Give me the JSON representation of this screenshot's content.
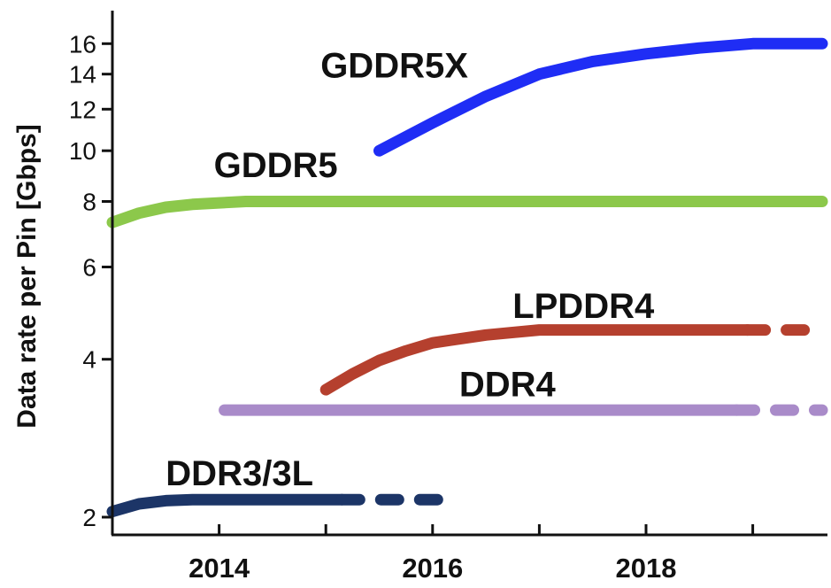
{
  "chart_data": {
    "type": "line",
    "title": "",
    "xlabel": "",
    "ylabel": "Data rate per Pin [Gbps]",
    "y_scale": "log",
    "xlim": [
      2013,
      2019.7
    ],
    "ylim": [
      1.85,
      18.5
    ],
    "x_ticks": [
      {
        "value": 2014,
        "label": "2014"
      },
      {
        "value": 2016,
        "label": "2016"
      },
      {
        "value": 2018,
        "label": "2018"
      }
    ],
    "x_minor_ticks": [
      2015,
      2017,
      2019
    ],
    "y_ticks": [
      {
        "value": 2,
        "label": "2"
      },
      {
        "value": 4,
        "label": "4"
      },
      {
        "value": 6,
        "label": "6"
      },
      {
        "value": 8,
        "label": "8"
      },
      {
        "value": 10,
        "label": "10"
      },
      {
        "value": 12,
        "label": "12"
      },
      {
        "value": 14,
        "label": "14"
      },
      {
        "value": 16,
        "label": "16"
      }
    ],
    "grid": false,
    "series": [
      {
        "name": "GDDR5X",
        "color": "#1f2df5",
        "segments": [
          {
            "style": "solid",
            "x": [
              2015.5,
              2016.0,
              2016.5,
              2017.0,
              2017.5,
              2018.0,
              2018.5,
              2019.0,
              2019.65
            ],
            "y": [
              10.0,
              11.3,
              12.7,
              14.0,
              14.8,
              15.3,
              15.7,
              16.0,
              16.0
            ]
          }
        ]
      },
      {
        "name": "GDDR5",
        "color": "#8cc84b",
        "segments": [
          {
            "style": "solid",
            "x": [
              2013.0,
              2013.25,
              2013.5,
              2013.75,
              2014.0,
              2014.25,
              2014.5,
              2015.0,
              2016.0,
              2017.0,
              2018.0,
              2019.0,
              2019.65
            ],
            "y": [
              7.3,
              7.6,
              7.8,
              7.9,
              7.95,
              8.0,
              8.0,
              8.0,
              8.0,
              8.0,
              8.0,
              8.0,
              8.0
            ]
          }
        ]
      },
      {
        "name": "LPDDR4",
        "color": "#b5402e",
        "segments": [
          {
            "style": "solid",
            "x": [
              2015.0,
              2015.25,
              2015.5,
              2015.75,
              2016.0,
              2016.5,
              2017.0,
              2017.5,
              2018.0,
              2018.5,
              2018.95
            ],
            "y": [
              3.5,
              3.75,
              3.98,
              4.15,
              4.3,
              4.45,
              4.55,
              4.55,
              4.55,
              4.55,
              4.55
            ]
          },
          {
            "style": "dashed",
            "x": [
              2018.95,
              2019.65
            ],
            "y": [
              4.55,
              4.55
            ]
          }
        ]
      },
      {
        "name": "DDR4",
        "color": "#a98bc9",
        "segments": [
          {
            "style": "solid",
            "x": [
              2014.05,
              2016.0,
              2018.0,
              2018.85
            ],
            "y": [
              3.2,
              3.2,
              3.2,
              3.2
            ]
          },
          {
            "style": "dashed",
            "x": [
              2018.85,
              2019.65
            ],
            "y": [
              3.2,
              3.2
            ]
          }
        ]
      },
      {
        "name": "DDR3/3L",
        "color": "#1c3567",
        "segments": [
          {
            "style": "solid",
            "x": [
              2013.0,
              2013.25,
              2013.5,
              2013.75,
              2014.0,
              2014.5,
              2015.0,
              2015.15
            ],
            "y": [
              2.05,
              2.12,
              2.15,
              2.16,
              2.16,
              2.16,
              2.16,
              2.16
            ]
          },
          {
            "style": "dashed",
            "x": [
              2015.15,
              2016.2
            ],
            "y": [
              2.16,
              2.16
            ]
          }
        ]
      }
    ],
    "annotations": [
      {
        "text": "GDDR5X",
        "x": 2014.95,
        "y": 13.8
      },
      {
        "text": "GDDR5",
        "x": 2013.95,
        "y": 8.9
      },
      {
        "text": "LPDDR4",
        "x": 2016.75,
        "y": 4.8
      },
      {
        "text": "DDR4",
        "x": 2016.25,
        "y": 3.4
      },
      {
        "text": "DDR3/3L",
        "x": 2013.5,
        "y": 2.3
      }
    ]
  }
}
